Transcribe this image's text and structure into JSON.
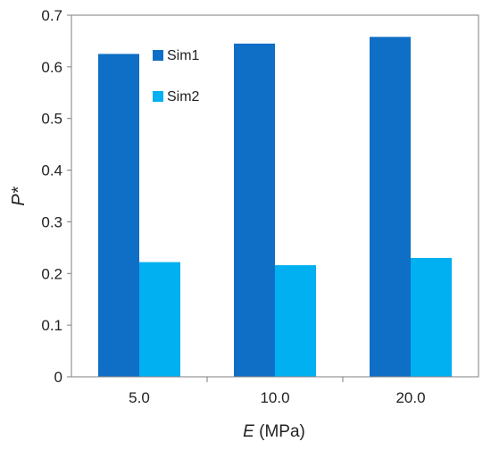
{
  "chart_data": {
    "type": "bar",
    "title": "",
    "categories": [
      "5.0",
      "10.0",
      "20.0"
    ],
    "series": [
      {
        "name": "Sim1",
        "values": [
          0.625,
          0.645,
          0.658
        ],
        "color": "#0F6EC5"
      },
      {
        "name": "Sim2",
        "values": [
          0.222,
          0.216,
          0.23
        ],
        "color": "#00B0F0"
      }
    ],
    "xlabel": {
      "italic": "E",
      "rest": " (MPa)"
    },
    "ylabel": "P*",
    "ylim": [
      0,
      0.7
    ],
    "yticks": [
      "0",
      "0.1",
      "0.2",
      "0.3",
      "0.4",
      "0.5",
      "0.6",
      "0.7"
    ],
    "grid": false,
    "legend_position": "top-left-inside"
  }
}
